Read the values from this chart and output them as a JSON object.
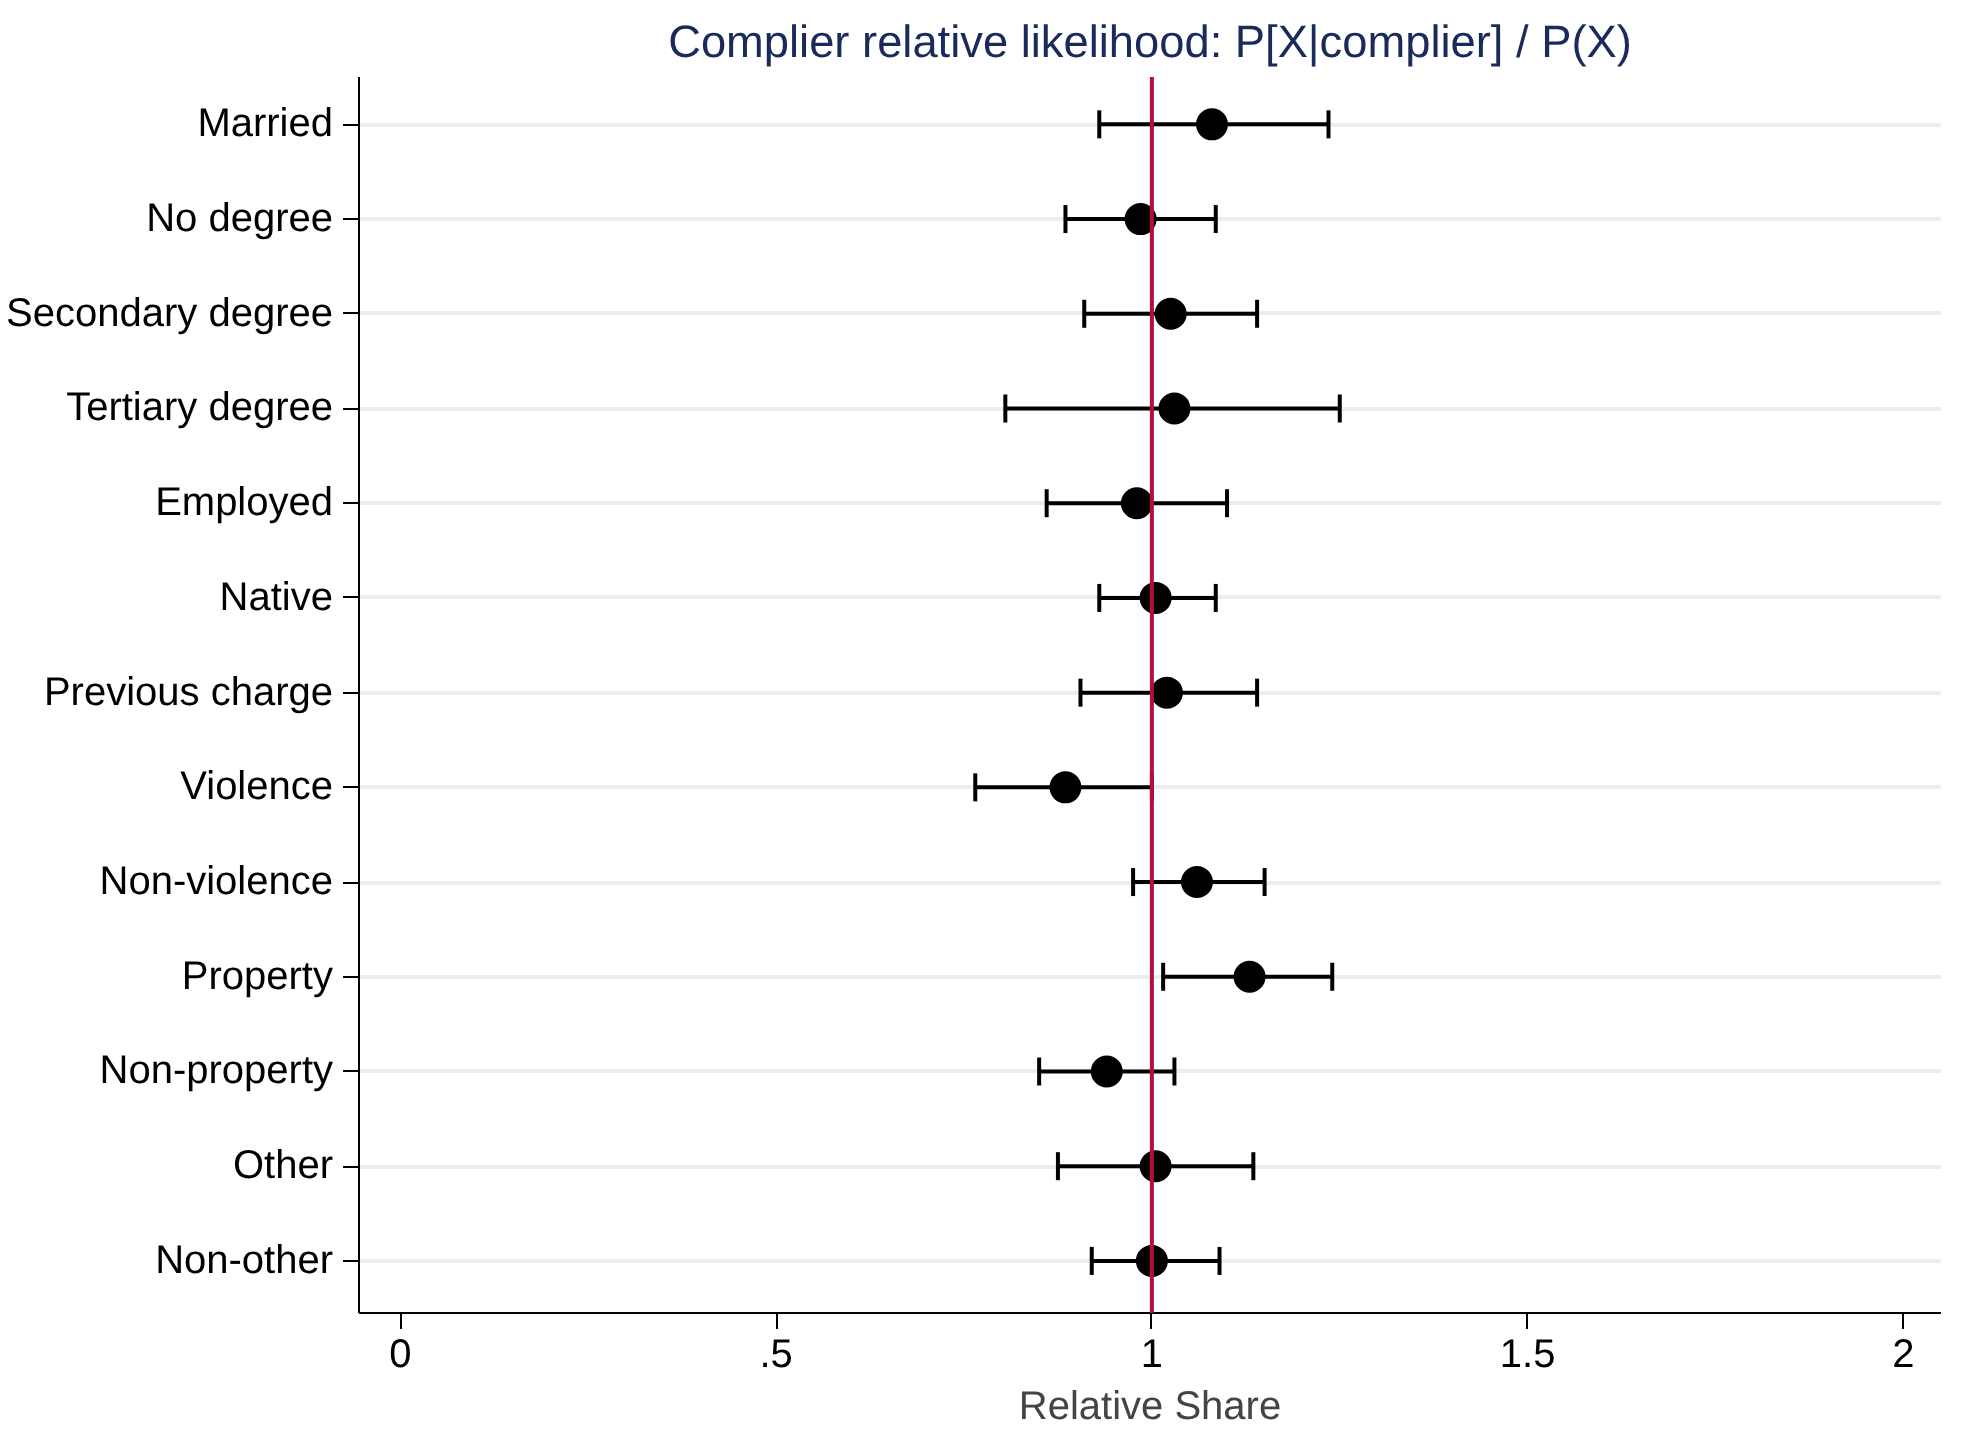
{
  "chart_data": {
    "type": "scatter",
    "orientation": "horizontal",
    "title": "Complier relative likelihood: P[X|complier] / P(X)",
    "xlabel": "Relative Share",
    "categories": [
      "Married",
      "No degree",
      "Secondary degree",
      "Tertiary degree",
      "Employed",
      "Native",
      "Previous charge",
      "Violence",
      "Non-violence",
      "Property",
      "Non-property",
      "Other",
      "Non-other"
    ],
    "color": "#000000",
    "marker": "circle",
    "values": [
      1.08,
      0.985,
      1.025,
      1.03,
      0.98,
      1.005,
      1.02,
      0.885,
      1.06,
      1.13,
      0.94,
      1.005,
      1.0
    ],
    "errors": [
      [
        0.93,
        1.235
      ],
      [
        0.885,
        1.085
      ],
      [
        0.91,
        1.14
      ],
      [
        0.805,
        1.25
      ],
      [
        0.86,
        1.1
      ],
      [
        0.93,
        1.085
      ],
      [
        0.905,
        1.14
      ],
      [
        0.765,
        1.0
      ],
      [
        0.975,
        1.15
      ],
      [
        1.015,
        1.24
      ],
      [
        0.85,
        1.03
      ],
      [
        0.875,
        1.135
      ],
      [
        0.92,
        1.09
      ]
    ],
    "xlim": [
      -0.055,
      2.05
    ],
    "xticks": [
      0,
      {
        "value": 0.5,
        "label": ".5"
      },
      1,
      1.5,
      2
    ],
    "ref_lines": [
      {
        "axis": "x",
        "value": 1,
        "color": "#b0103a"
      }
    ],
    "grid": "y"
  }
}
